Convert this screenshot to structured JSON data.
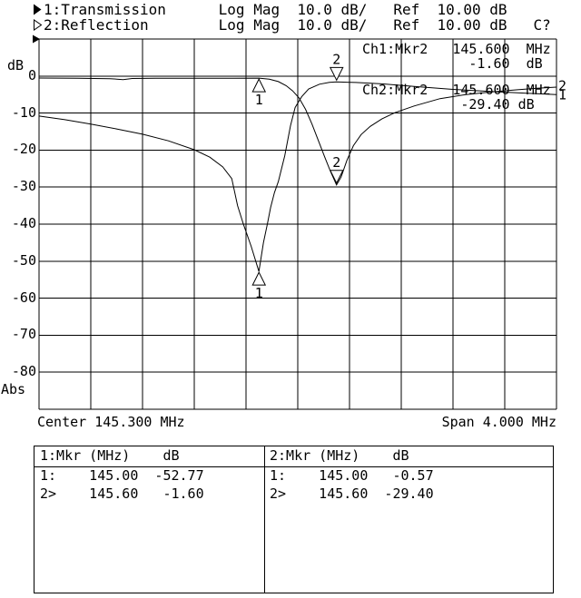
{
  "header": {
    "line1": "1:Transmission      Log Mag  10.0 dB/   Ref  10.00 dB",
    "line2": "2:Reflection        Log Mag  10.0 dB/   Ref  10.00 dB   C?"
  },
  "readouts": {
    "ch1_line1": "Ch1:Mkr2   145.600  MHz",
    "ch1_line2": "             -1.60  dB",
    "ch2_line1": "Ch2:Mkr2   145.600  MHz",
    "ch2_line2": "            -29.40 dB"
  },
  "axis_labels": {
    "unit_top": "dB",
    "unit_bottom": "Abs",
    "center": "Center 145.300 MHz",
    "span": "Span 4.000 MHz"
  },
  "marker_table": {
    "ch1_header": "1:Mkr (MHz)    dB",
    "ch1_row1": "1:    145.00  -52.77",
    "ch1_row2": "2>    145.60   -1.60",
    "ch2_header": "2:Mkr (MHz)    dB",
    "ch2_row1": "1:    145.00   -0.57",
    "ch2_row2": "2>    145.60  -29.40"
  },
  "chart_data": {
    "type": "line",
    "title": "Transmission / Reflection Log Mag",
    "x_axis": {
      "center_mhz": 145.3,
      "span_mhz": 4.0,
      "start_mhz": 143.3,
      "stop_mhz": 147.3,
      "divisions": 10,
      "label_left": "Center 145.300 MHz",
      "label_right": "Span 4.000 MHz"
    },
    "y_axis": {
      "unit": "dB",
      "ref_db": 10,
      "scale_db_per_div": 10,
      "max_db": 10,
      "min_db": -90,
      "ticks": [
        "0",
        "-10",
        "-20",
        "-30",
        "-40",
        "-50",
        "-60",
        "-70",
        "-80"
      ],
      "top_label": "dB",
      "bottom_label": "Abs"
    },
    "series": [
      {
        "name": "Transmission",
        "channel": 1,
        "points": [
          [
            143.3,
            -10.8
          ],
          [
            143.5,
            -11.8
          ],
          [
            143.7,
            -13.0
          ],
          [
            143.9,
            -14.3
          ],
          [
            144.1,
            -15.7
          ],
          [
            144.3,
            -17.5
          ],
          [
            144.5,
            -19.9
          ],
          [
            144.62,
            -21.9
          ],
          [
            144.72,
            -24.5
          ],
          [
            144.79,
            -27.7
          ],
          [
            144.835,
            -35.0
          ],
          [
            144.88,
            -40.0
          ],
          [
            144.94,
            -46.0
          ],
          [
            145.0,
            -52.8
          ],
          [
            145.035,
            -45.0
          ],
          [
            145.065,
            -40.0
          ],
          [
            145.09,
            -35.5
          ],
          [
            145.12,
            -31.5
          ],
          [
            145.15,
            -28.5
          ],
          [
            145.2,
            -21.5
          ],
          [
            145.244,
            -13.4
          ],
          [
            145.28,
            -8.5
          ],
          [
            145.33,
            -5.6
          ],
          [
            145.384,
            -3.5
          ],
          [
            145.468,
            -2.2
          ],
          [
            145.545,
            -1.7
          ],
          [
            145.6,
            -1.6
          ],
          [
            145.75,
            -1.75
          ],
          [
            145.95,
            -2.1
          ],
          [
            146.2,
            -2.8
          ],
          [
            146.5,
            -3.6
          ],
          [
            146.8,
            -4.2
          ],
          [
            147.05,
            -4.6
          ],
          [
            147.3,
            -5.0
          ]
        ]
      },
      {
        "name": "Reflection",
        "channel": 2,
        "points": [
          [
            143.3,
            -0.55
          ],
          [
            143.6,
            -0.6
          ],
          [
            143.85,
            -0.7
          ],
          [
            143.95,
            -0.95
          ],
          [
            144.02,
            -0.65
          ],
          [
            144.2,
            -0.6
          ],
          [
            144.5,
            -0.58
          ],
          [
            144.8,
            -0.58
          ],
          [
            145.0,
            -0.57
          ],
          [
            145.08,
            -0.85
          ],
          [
            145.15,
            -1.5
          ],
          [
            145.21,
            -2.6
          ],
          [
            145.26,
            -4.0
          ],
          [
            145.31,
            -5.9
          ],
          [
            145.36,
            -9.0
          ],
          [
            145.41,
            -13.0
          ],
          [
            145.46,
            -17.5
          ],
          [
            145.51,
            -22.0
          ],
          [
            145.55,
            -25.5
          ],
          [
            145.6,
            -29.4
          ],
          [
            145.635,
            -27.3
          ],
          [
            145.68,
            -22.8
          ],
          [
            145.73,
            -18.8
          ],
          [
            145.79,
            -15.8
          ],
          [
            145.86,
            -13.6
          ],
          [
            145.95,
            -11.6
          ],
          [
            146.05,
            -9.9
          ],
          [
            146.2,
            -8.1
          ],
          [
            146.4,
            -6.1
          ],
          [
            146.6,
            -5.0
          ],
          [
            146.8,
            -4.3
          ],
          [
            147.0,
            -3.7
          ],
          [
            147.15,
            -3.3
          ],
          [
            147.3,
            -3.0
          ]
        ]
      }
    ],
    "markers": [
      {
        "channel": 1,
        "number": "1",
        "freq_mhz": 145.0,
        "value_db": -52.77,
        "pointer": "up"
      },
      {
        "channel": 1,
        "number": "2",
        "freq_mhz": 145.6,
        "value_db": -1.6,
        "pointer": "down"
      },
      {
        "channel": 2,
        "number": "1",
        "freq_mhz": 145.0,
        "value_db": -0.57,
        "pointer": "up"
      },
      {
        "channel": 2,
        "number": "2",
        "freq_mhz": 145.6,
        "value_db": -29.4,
        "pointer": "down"
      }
    ],
    "trace_end_labels": [
      {
        "trace": "2",
        "value_db": -2.9
      },
      {
        "trace": "1",
        "value_db": -5.3
      }
    ],
    "grid_on": true,
    "colors": {
      "foreground": "#000000",
      "background": "#ffffff"
    }
  }
}
